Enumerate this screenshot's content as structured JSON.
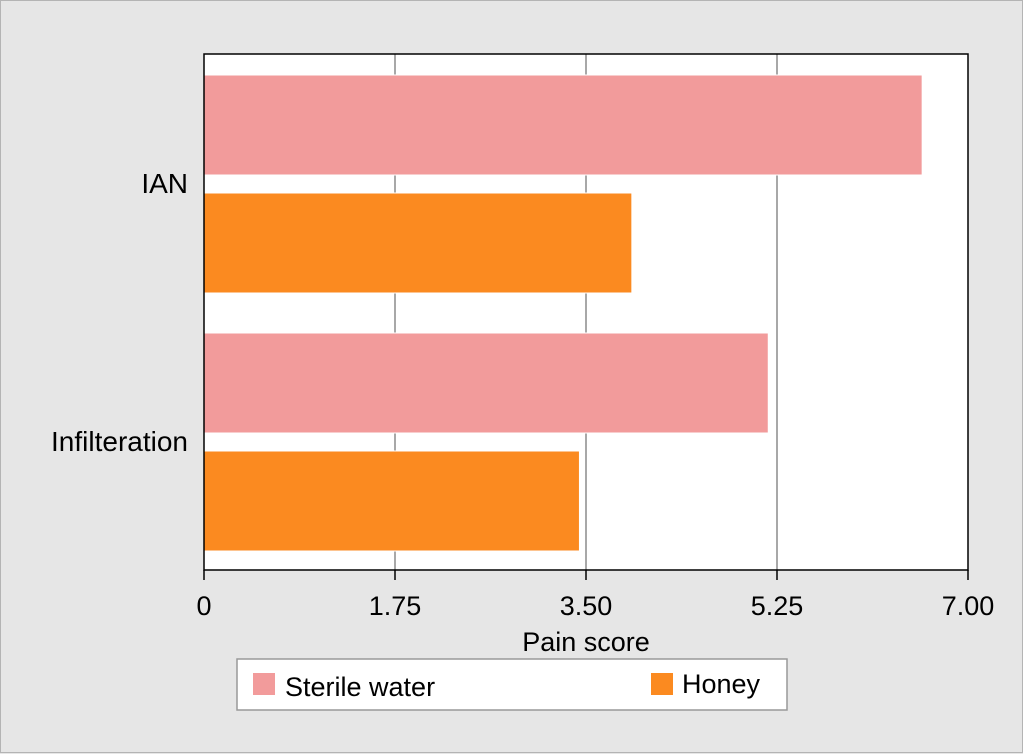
{
  "chart_data": {
    "type": "bar",
    "orientation": "horizontal",
    "categories": [
      "IAN",
      "Infilteration"
    ],
    "series": [
      {
        "name": "Sterile water",
        "color": "#f29b9b",
        "values": [
          6.58,
          5.17
        ]
      },
      {
        "name": "Honey",
        "color": "#fb8a20",
        "values": [
          3.92,
          3.44
        ]
      }
    ],
    "xlabel": "Pain score",
    "ylabel": "",
    "xlim": [
      0,
      7
    ],
    "xticks": [
      "0",
      "1.75",
      "3.50",
      "5.25",
      "7.00"
    ],
    "xtick_values": [
      0,
      1.75,
      3.5,
      5.25,
      7
    ],
    "grid": "vertical",
    "legend_position": "bottom"
  }
}
